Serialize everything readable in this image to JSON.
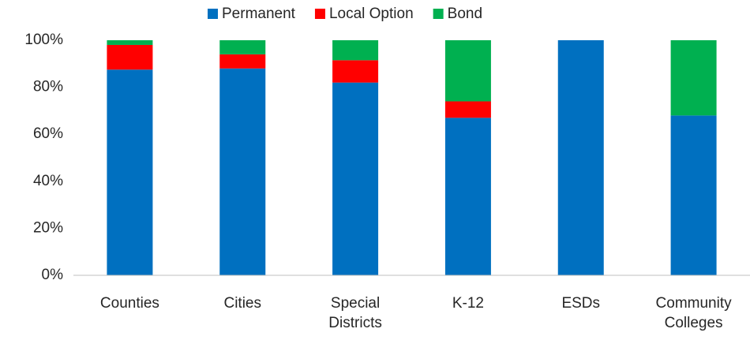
{
  "chart_data": {
    "type": "stacked_bar",
    "categories": [
      "Counties",
      "Cities",
      "Special Districts",
      "K-12",
      "ESDs",
      "Community Colleges"
    ],
    "series": [
      {
        "name": "Permanent",
        "color": "#0070c0",
        "values": [
          87.5,
          88,
          82,
          67,
          100,
          68
        ]
      },
      {
        "name": "Local Option",
        "color": "#ff0000",
        "values": [
          10.5,
          6,
          9.5,
          7,
          0,
          0
        ]
      },
      {
        "name": "Bond",
        "color": "#00b050",
        "values": [
          2,
          6,
          8.5,
          26,
          0,
          32
        ]
      }
    ],
    "ylim": [
      0,
      100
    ],
    "yticks": [
      {
        "value": 0,
        "label": "0%"
      },
      {
        "value": 20,
        "label": "20%"
      },
      {
        "value": 40,
        "label": "40%"
      },
      {
        "value": 60,
        "label": "60%"
      },
      {
        "value": 80,
        "label": "80%"
      },
      {
        "value": 100,
        "label": "100%"
      }
    ],
    "legend": "top",
    "grid": false
  }
}
